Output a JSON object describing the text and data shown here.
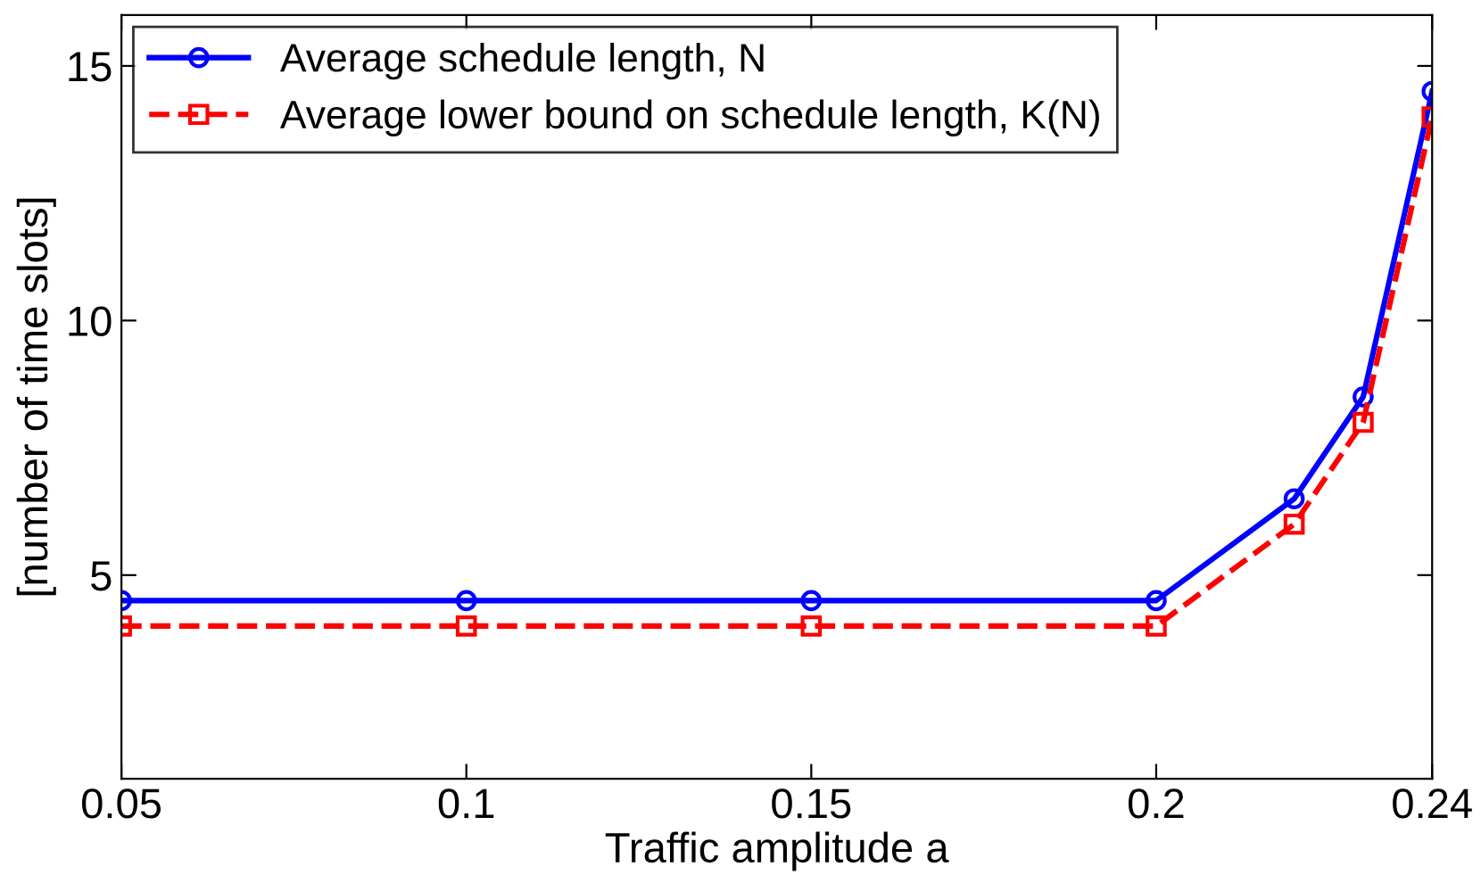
{
  "chart_data": {
    "type": "line",
    "xlabel": "Traffic amplitude a",
    "ylabel": "[number of time slots]",
    "x": [
      0.05,
      0.1,
      0.15,
      0.2,
      0.22,
      0.23,
      0.24
    ],
    "series": [
      {
        "name": "Average schedule length, N",
        "color": "#0000ff",
        "values": [
          4.5,
          4.5,
          4.5,
          4.5,
          6.5,
          8.5,
          14.5
        ],
        "marker": "circle",
        "line_style": "solid"
      },
      {
        "name": "Average lower bound on schedule length, K(N)",
        "color": "#ff0000",
        "values": [
          4,
          4,
          4,
          4,
          6,
          8,
          14
        ],
        "marker": "square",
        "line_style": "dashed"
      }
    ],
    "xlim": [
      0.05,
      0.24
    ],
    "xticks": [
      0.05,
      0.1,
      0.15,
      0.2,
      0.24
    ],
    "ylim": [
      1,
      16
    ],
    "yticks": [
      5,
      10,
      15
    ],
    "grid": false,
    "legend": "top left"
  }
}
